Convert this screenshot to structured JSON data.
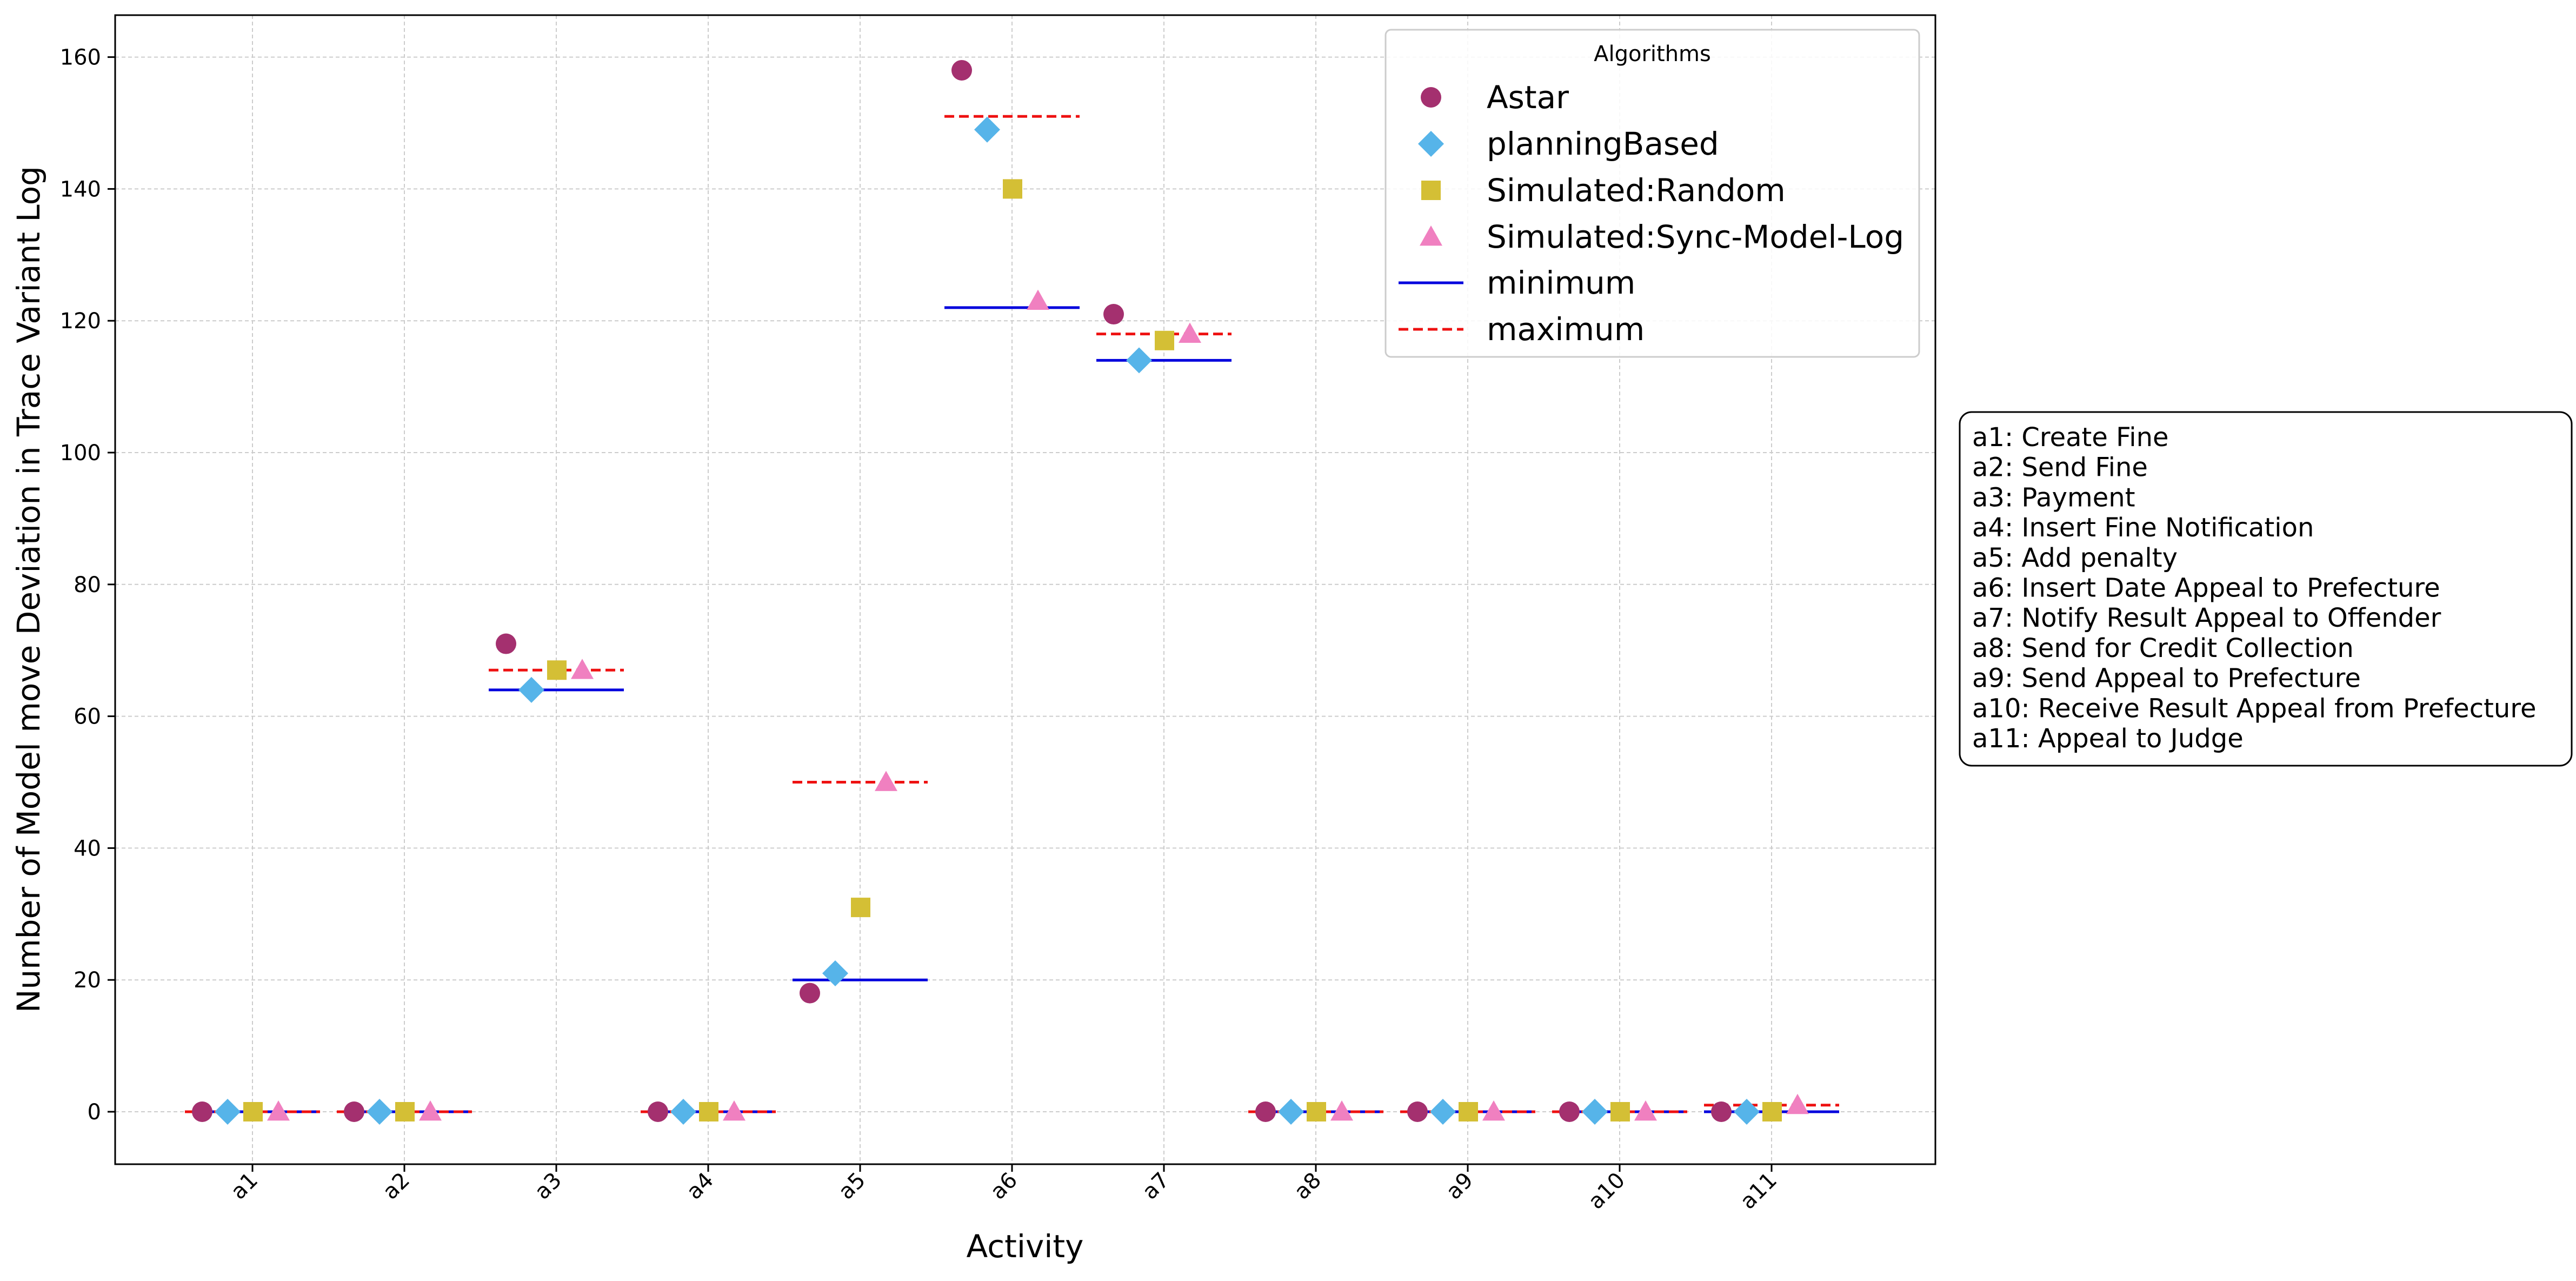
{
  "chart_data": {
    "type": "scatter",
    "xlabel": "Activity",
    "ylabel": "Number of Model move Deviation  in Trace Variant Log",
    "categories": [
      "a1",
      "a2",
      "a3",
      "a4",
      "a5",
      "a6",
      "a7",
      "a8",
      "a9",
      "a10",
      "a11"
    ],
    "ylim": [
      -8,
      166
    ],
    "yticks": [
      0,
      20,
      40,
      60,
      80,
      100,
      120,
      140,
      160
    ],
    "grid": true,
    "legend": {
      "title": "Algorithms",
      "placement": "top-right",
      "entries": [
        "Astar",
        "planningBased",
        "Simulated:Random",
        "Simulated:Sync-Model-Log",
        "minimum",
        "maximum"
      ]
    },
    "series": [
      {
        "name": "Astar",
        "marker": "circle",
        "color": "#A4306F",
        "values": [
          0,
          0,
          71,
          0,
          18,
          158,
          121,
          0,
          0,
          0,
          0
        ]
      },
      {
        "name": "planningBased",
        "marker": "diamond",
        "color": "#56B4E9",
        "values": [
          0,
          0,
          64,
          0,
          21,
          149,
          114,
          0,
          0,
          0,
          0
        ]
      },
      {
        "name": "Simulated:Random",
        "marker": "square",
        "color": "#D4BF35",
        "values": [
          0,
          0,
          67,
          0,
          31,
          140,
          117,
          0,
          0,
          0,
          0
        ]
      },
      {
        "name": "Simulated:Sync-Model-Log",
        "marker": "triangle",
        "color": "#F080C0",
        "values": [
          0,
          0,
          67,
          0,
          50,
          123,
          118,
          0,
          0,
          0,
          1
        ]
      }
    ],
    "minimum": {
      "name": "minimum",
      "color": "#0000DD",
      "style": "solid",
      "values": [
        0,
        0,
        64,
        0,
        20,
        122,
        114,
        0,
        0,
        0,
        0
      ]
    },
    "maximum": {
      "name": "maximum",
      "color": "#EE1111",
      "style": "dashed",
      "values": [
        0,
        0,
        67,
        0,
        50,
        151,
        118,
        0,
        0,
        0,
        1
      ]
    },
    "activity_key": [
      "a1: Create Fine",
      "a2: Send Fine",
      "a3: Payment",
      "a4: Insert Fine Notification",
      "a5: Add penalty",
      "a6: Insert Date Appeal to Prefecture",
      "a7: Notify Result Appeal to Offender",
      "a8: Send for Credit Collection",
      "a9: Send Appeal to Prefecture",
      "a10: Receive Result Appeal from Prefecture",
      "a11: Appeal to Judge"
    ]
  }
}
